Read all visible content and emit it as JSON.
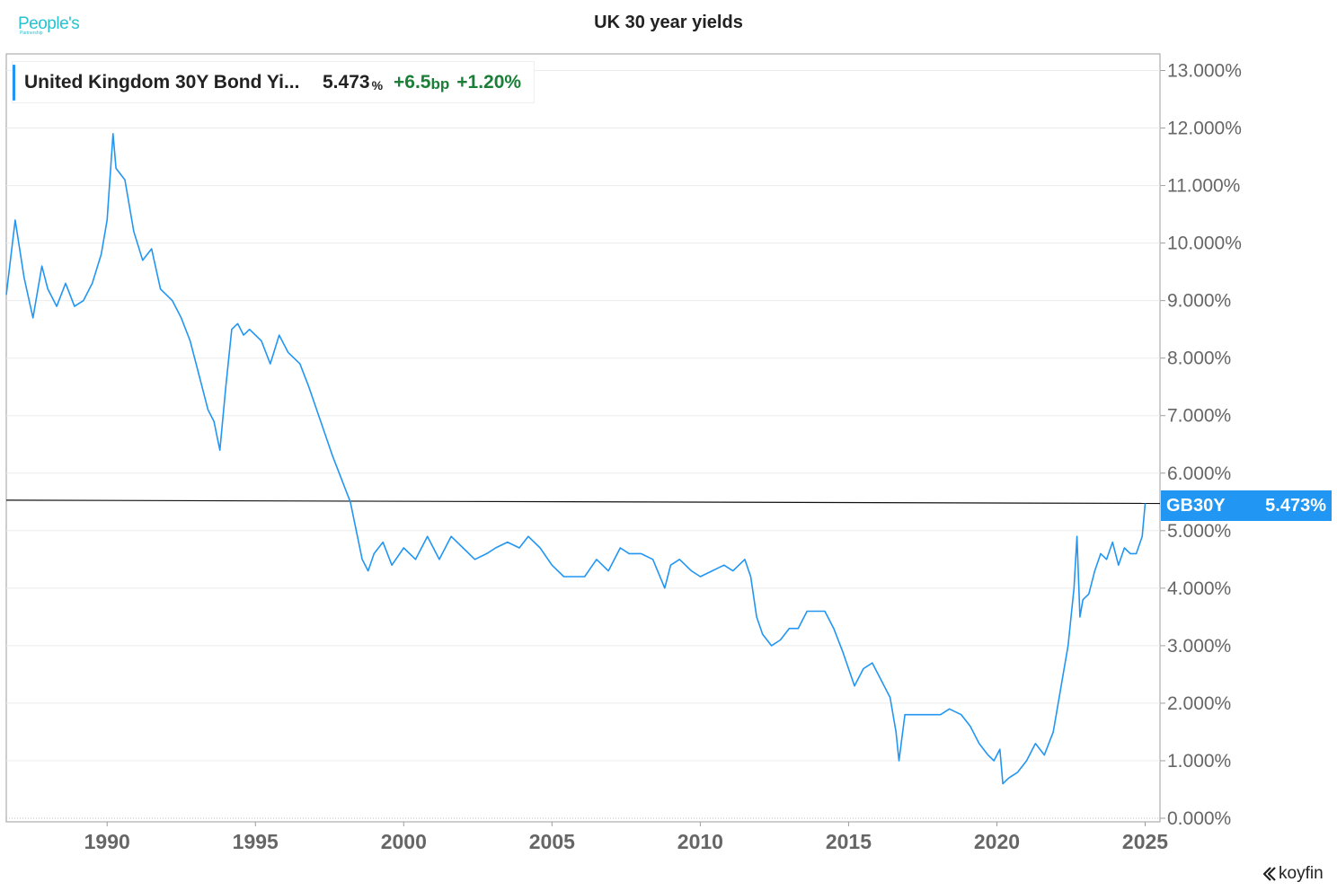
{
  "brand": {
    "logo_text": "People's",
    "logo_subtext": "Partnership"
  },
  "title": "UK 30 year yields",
  "legend": {
    "series_name": "United Kingdom 30Y Bond Yi...",
    "last_value": "5.473",
    "last_unit": "%",
    "change_bp": "+6.5",
    "change_unit": "bp",
    "change_pct": "+1.20%"
  },
  "price_tag": {
    "ticker": "GB30Y",
    "value": "5.473%"
  },
  "footer": {
    "brand": "koyfin"
  },
  "colors": {
    "series": "#2196f3",
    "positive": "#1a7f37",
    "reference_line": "#111111",
    "grid": "#ececec",
    "axis_text": "#666666"
  },
  "chart_data": {
    "type": "line",
    "title": "UK 30 year yields",
    "xlabel": "",
    "ylabel": "",
    "xlim": [
      1986.6,
      2025.5
    ],
    "ylim": [
      0,
      13
    ],
    "x_ticks": [
      "1990",
      "1995",
      "2000",
      "2005",
      "2010",
      "2015",
      "2020",
      "2025"
    ],
    "y_ticks": [
      "0.000%",
      "1.000%",
      "2.000%",
      "3.000%",
      "4.000%",
      "5.000%",
      "6.000%",
      "7.000%",
      "8.000%",
      "9.000%",
      "10.000%",
      "11.000%",
      "12.000%",
      "13.000%"
    ],
    "grid": "horizontal",
    "legend_position": "top-left",
    "reference_line": {
      "start": [
        1986.6,
        5.53
      ],
      "end": [
        2025.0,
        5.473
      ]
    },
    "series": [
      {
        "name": "United Kingdom 30Y Bond Yield",
        "x": [
          1986.6,
          1986.9,
          1987.2,
          1987.5,
          1987.8,
          1988.0,
          1988.3,
          1988.6,
          1988.9,
          1989.2,
          1989.5,
          1989.8,
          1990.0,
          1990.2,
          1990.3,
          1990.6,
          1990.9,
          1991.2,
          1991.5,
          1991.8,
          1992.2,
          1992.5,
          1992.8,
          1993.1,
          1993.4,
          1993.6,
          1993.8,
          1994.0,
          1994.2,
          1994.4,
          1994.6,
          1994.8,
          1995.2,
          1995.5,
          1995.8,
          1996.1,
          1996.5,
          1996.8,
          1997.2,
          1997.6,
          1997.9,
          1998.2,
          1998.4,
          1998.6,
          1998.8,
          1999.0,
          1999.3,
          1999.6,
          2000.0,
          2000.4,
          2000.8,
          2001.2,
          2001.6,
          2002.0,
          2002.4,
          2002.8,
          2003.1,
          2003.5,
          2003.9,
          2004.2,
          2004.6,
          2005.0,
          2005.4,
          2005.8,
          2006.1,
          2006.5,
          2006.9,
          2007.3,
          2007.6,
          2008.0,
          2008.4,
          2008.8,
          2009.0,
          2009.3,
          2009.7,
          2010.0,
          2010.4,
          2010.8,
          2011.1,
          2011.5,
          2011.7,
          2011.9,
          2012.1,
          2012.4,
          2012.7,
          2013.0,
          2013.3,
          2013.6,
          2013.9,
          2014.2,
          2014.5,
          2014.8,
          2015.0,
          2015.2,
          2015.5,
          2015.8,
          2016.1,
          2016.4,
          2016.6,
          2016.7,
          2016.9,
          2017.2,
          2017.5,
          2017.8,
          2018.1,
          2018.4,
          2018.8,
          2019.1,
          2019.4,
          2019.7,
          2019.9,
          2020.1,
          2020.2,
          2020.4,
          2020.7,
          2021.0,
          2021.3,
          2021.6,
          2021.9,
          2022.0,
          2022.2,
          2022.4,
          2022.6,
          2022.7,
          2022.8,
          2022.9,
          2023.1,
          2023.3,
          2023.5,
          2023.7,
          2023.9,
          2024.1,
          2024.3,
          2024.5,
          2024.7,
          2024.9,
          2025.0
        ],
        "values": [
          9.1,
          10.4,
          9.4,
          8.7,
          9.6,
          9.2,
          8.9,
          9.3,
          8.9,
          9.0,
          9.3,
          9.8,
          10.4,
          11.9,
          11.3,
          11.1,
          10.2,
          9.7,
          9.9,
          9.2,
          9.0,
          8.7,
          8.3,
          7.7,
          7.1,
          6.9,
          6.4,
          7.5,
          8.5,
          8.6,
          8.4,
          8.5,
          8.3,
          7.9,
          8.4,
          8.1,
          7.9,
          7.5,
          6.9,
          6.3,
          5.9,
          5.5,
          5.0,
          4.5,
          4.3,
          4.6,
          4.8,
          4.4,
          4.7,
          4.5,
          4.9,
          4.5,
          4.9,
          4.7,
          4.5,
          4.6,
          4.7,
          4.8,
          4.7,
          4.9,
          4.7,
          4.4,
          4.2,
          4.2,
          4.2,
          4.5,
          4.3,
          4.7,
          4.6,
          4.6,
          4.5,
          4.0,
          4.4,
          4.5,
          4.3,
          4.2,
          4.3,
          4.4,
          4.3,
          4.5,
          4.2,
          3.5,
          3.2,
          3.0,
          3.1,
          3.3,
          3.3,
          3.6,
          3.6,
          3.6,
          3.3,
          2.9,
          2.6,
          2.3,
          2.6,
          2.7,
          2.4,
          2.1,
          1.5,
          1.0,
          1.8,
          1.8,
          1.8,
          1.8,
          1.8,
          1.9,
          1.8,
          1.6,
          1.3,
          1.1,
          1.0,
          1.2,
          0.6,
          0.7,
          0.8,
          1.0,
          1.3,
          1.1,
          1.5,
          1.8,
          2.4,
          3.0,
          4.0,
          4.9,
          3.5,
          3.8,
          3.9,
          4.3,
          4.6,
          4.5,
          4.8,
          4.4,
          4.7,
          4.6,
          4.6,
          4.9,
          5.473
        ]
      }
    ]
  }
}
